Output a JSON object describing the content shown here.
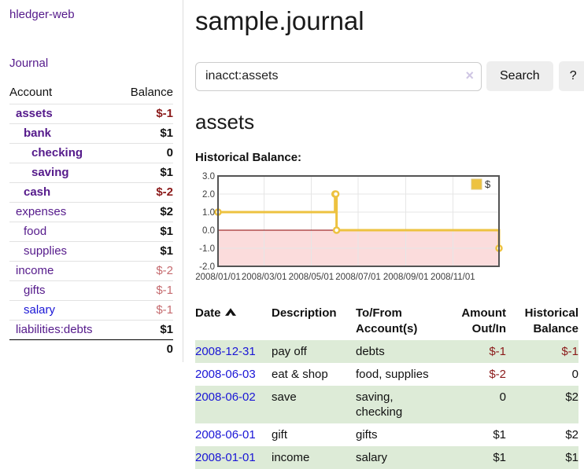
{
  "colors": {
    "link_purple": "#551a8b",
    "link_blue": "#1a16d6",
    "neg_strong": "#8b1a1a",
    "neg_soft": "#c56a6e",
    "row_green": "#ddebd7",
    "chart_gold": "#edc240",
    "chart_pink": "#fbdcdc",
    "zero_red": "#8b0000",
    "grid_gray": "#e6e6e6",
    "border_dark": "#545454",
    "button_gray": "#eeeeee"
  },
  "sidebar": {
    "brand": "hledger-web",
    "journal_link": "Journal",
    "accounts_table": {
      "headers": {
        "account": "Account",
        "balance": "Balance"
      },
      "rows": [
        {
          "name": "assets",
          "level": 1,
          "bold": true,
          "balance": "$-1",
          "balance_style": "neg-strong"
        },
        {
          "name": "bank",
          "level": 2,
          "bold": true,
          "balance": "$1",
          "balance_style": "pos"
        },
        {
          "name": "checking",
          "level": 3,
          "bold": true,
          "balance": "0",
          "balance_style": "pos"
        },
        {
          "name": "saving",
          "level": 3,
          "bold": true,
          "balance": "$1",
          "balance_style": "pos"
        },
        {
          "name": "cash",
          "level": 2,
          "bold": true,
          "balance": "$-2",
          "balance_style": "neg-strong"
        },
        {
          "name": "expenses",
          "level": 1,
          "bold": false,
          "balance": "$2",
          "balance_style": "pos"
        },
        {
          "name": "food",
          "level": 2,
          "bold": false,
          "balance": "$1",
          "balance_style": "pos"
        },
        {
          "name": "supplies",
          "level": 2,
          "bold": false,
          "balance": "$1",
          "balance_style": "pos"
        },
        {
          "name": "income",
          "level": 1,
          "bold": false,
          "balance": "$-2",
          "balance_style": "neg-soft"
        },
        {
          "name": "gifts",
          "level": 2,
          "bold": false,
          "balance": "$-1",
          "balance_style": "neg-soft"
        },
        {
          "name": "salary",
          "level": 2,
          "bold": false,
          "link_style": "unvisited",
          "balance": "$-1",
          "balance_style": "neg-soft"
        },
        {
          "name": "liabilities:debts",
          "level": 1,
          "bold": false,
          "balance": "$1",
          "balance_style": "pos"
        }
      ],
      "total": "0"
    }
  },
  "header": {
    "title": "sample.journal"
  },
  "search": {
    "value": "inacct:assets",
    "clear_icon": "×",
    "search_button": "Search",
    "help_button": "?"
  },
  "account_page": {
    "title": "assets",
    "chart_label": "Historical Balance:"
  },
  "chart_data": {
    "type": "line",
    "style": "step",
    "title": "Historical Balance",
    "legend": "$",
    "legend_position": "top-right",
    "grid": true,
    "ylim": [
      -2,
      3
    ],
    "xlim_days": [
      0,
      365
    ],
    "series": [
      {
        "name": "$",
        "color": "#edc240",
        "points": [
          {
            "date": "2008-01-01",
            "day": 0,
            "value": 1
          },
          {
            "date": "2008-06-01",
            "day": 152,
            "value": 2
          },
          {
            "date": "2008-06-02",
            "day": 153,
            "value": 2
          },
          {
            "date": "2008-06-03",
            "day": 154,
            "value": 0
          },
          {
            "date": "2008-12-31",
            "day": 365,
            "value": -1
          }
        ]
      }
    ],
    "yticks": [
      {
        "value": 3,
        "label": "3.0"
      },
      {
        "value": 2,
        "label": "2.0"
      },
      {
        "value": 1,
        "label": "1.0"
      },
      {
        "value": 0,
        "label": "0.0"
      },
      {
        "value": -1,
        "label": "-1.0"
      },
      {
        "value": -2,
        "label": "-2.0"
      }
    ],
    "xticks": [
      {
        "day": 0,
        "label": "2008/01/01"
      },
      {
        "day": 60,
        "label": "2008/03/01"
      },
      {
        "day": 121,
        "label": "2008/05/01"
      },
      {
        "day": 182,
        "label": "2008/07/01"
      },
      {
        "day": 244,
        "label": "2008/09/01"
      },
      {
        "day": 305,
        "label": "2008/11/01"
      }
    ],
    "negative_region_fill": "#fbdcdc",
    "zero_line_color": "#8b0000"
  },
  "register_table": {
    "headers": [
      {
        "label": "Date",
        "sortable": true,
        "align": "left"
      },
      {
        "label": "Description",
        "align": "left"
      },
      {
        "label": "To/From Account(s)",
        "align": "left"
      },
      {
        "label": "Amount Out/In",
        "align": "right"
      },
      {
        "label": "Historical Balance",
        "align": "right"
      }
    ],
    "rows": [
      {
        "date": "2008-12-31",
        "description": "pay off",
        "accounts": "debts",
        "amount": "$-1",
        "amount_neg": true,
        "balance": "$-1",
        "balance_neg": true,
        "shaded": true
      },
      {
        "date": "2008-06-03",
        "description": "eat & shop",
        "accounts": "food, supplies",
        "amount": "$-2",
        "amount_neg": true,
        "balance": "0",
        "balance_neg": false,
        "shaded": false
      },
      {
        "date": "2008-06-02",
        "description": "save",
        "accounts": "saving, checking",
        "amount": "0",
        "amount_neg": false,
        "balance": "$2",
        "balance_neg": false,
        "shaded": true
      },
      {
        "date": "2008-06-01",
        "description": "gift",
        "accounts": "gifts",
        "amount": "$1",
        "amount_neg": false,
        "balance": "$2",
        "balance_neg": false,
        "shaded": false
      },
      {
        "date": "2008-01-01",
        "description": "income",
        "accounts": "salary",
        "amount": "$1",
        "amount_neg": false,
        "balance": "$1",
        "balance_neg": false,
        "shaded": true
      }
    ]
  }
}
